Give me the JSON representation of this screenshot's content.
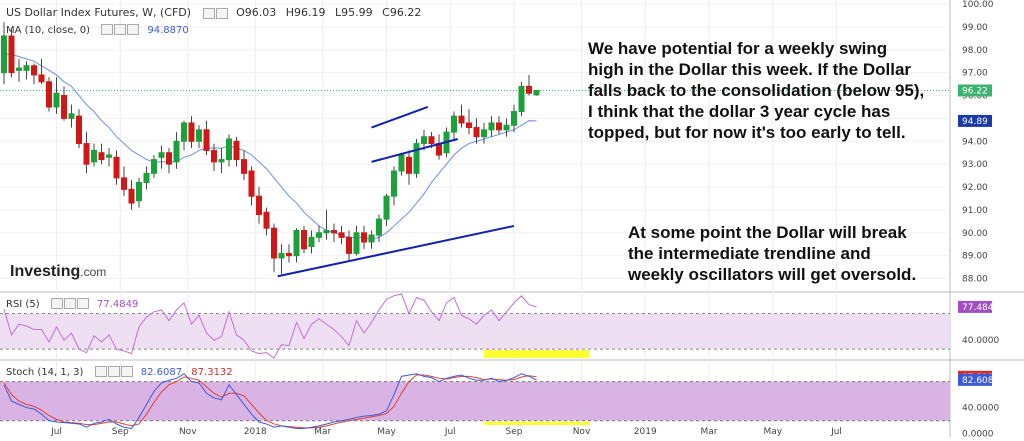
{
  "header": {
    "title": "US Dollar Index Futures, W, (CFD)",
    "ohlc": [
      {
        "k": "O",
        "v": "96.03"
      },
      {
        "k": "H",
        "v": "96.19"
      },
      {
        "k": "L",
        "v": "95.99"
      },
      {
        "k": "C",
        "v": "96.22"
      }
    ],
    "ma_label": "MA (10, close, 0)",
    "ma_value": "94.8870",
    "rsi_label": "RSI (5)",
    "rsi_value": "77.4849",
    "stoch_label": "Stoch (14, 1, 3)",
    "stoch_k_value": "82.6087",
    "stoch_d_value": "87.3132"
  },
  "logo": {
    "main": "Investing",
    "suffix": ".com"
  },
  "annotations": {
    "note1": "We have potential for a weekly swing\nhigh in the Dollar this week. If the Dollar\nfalls back to the consolidation (below 95),\nI think that the dollar 3 year cycle has\ntopped, but for now it's too early to tell.",
    "note2": "At some point the Dollar will break\nthe intermediate trendline and\nweekly oscillators will get oversold."
  },
  "colors": {
    "up": "#1aa13a",
    "down": "#d01818",
    "ma": "#6b8fe8",
    "rsi": "#c070d8",
    "stoch_k": "#3c5ad8",
    "stoch_d": "#e0403a",
    "band": "#d9b3e3",
    "highlight": "#ffff33",
    "trendline": "#1020b0",
    "current_price_line": "#3cb371"
  },
  "chart_data": [
    {
      "type": "candlestick",
      "title": "US Dollar Index Futures, W, (CFD)",
      "ylim": [
        87.5,
        100.0
      ],
      "yticks": [
        "100.00",
        "99.00",
        "98.00",
        "97.00",
        "96.00",
        "95.00",
        "94.00",
        "93.00",
        "92.00",
        "91.00",
        "90.00",
        "89.00",
        "88.00"
      ],
      "xticks": [
        "Jul",
        "Sep",
        "Nov",
        "2018",
        "Mar",
        "May",
        "Jul",
        "Sep",
        "Nov",
        "2019",
        "Mar",
        "May",
        "Jul"
      ],
      "last_price": "96.22",
      "ma_last": "94.89",
      "candles": [
        [
          97.0,
          99.2,
          96.5,
          98.6
        ],
        [
          98.6,
          98.9,
          96.8,
          97.0
        ],
        [
          97.1,
          97.6,
          96.6,
          97.2
        ],
        [
          97.1,
          97.5,
          96.7,
          97.3
        ],
        [
          97.3,
          97.4,
          96.5,
          96.9
        ],
        [
          96.9,
          97.6,
          96.5,
          96.6
        ],
        [
          96.6,
          96.8,
          95.3,
          95.5
        ],
        [
          95.5,
          96.8,
          95.2,
          96.1
        ],
        [
          96.0,
          96.4,
          94.9,
          95.0
        ],
        [
          95.0,
          95.6,
          94.6,
          95.2
        ],
        [
          95.1,
          95.4,
          93.7,
          93.9
        ],
        [
          93.9,
          94.4,
          92.6,
          93.0
        ],
        [
          93.1,
          93.9,
          92.9,
          93.6
        ],
        [
          93.5,
          93.9,
          93.0,
          93.2
        ],
        [
          93.3,
          93.7,
          92.9,
          93.4
        ],
        [
          93.3,
          93.6,
          92.1,
          92.4
        ],
        [
          92.4,
          92.9,
          91.6,
          91.9
        ],
        [
          91.9,
          92.3,
          91.0,
          91.3
        ],
        [
          91.4,
          92.4,
          91.1,
          92.2
        ],
        [
          92.2,
          92.9,
          91.9,
          92.6
        ],
        [
          92.6,
          93.4,
          92.4,
          93.2
        ],
        [
          93.3,
          93.8,
          92.8,
          93.5
        ],
        [
          93.5,
          93.7,
          92.6,
          93.0
        ],
        [
          93.1,
          94.4,
          92.8,
          94.0
        ],
        [
          94.0,
          94.9,
          93.6,
          94.8
        ],
        [
          94.8,
          95.1,
          93.7,
          94.0
        ],
        [
          94.0,
          94.7,
          93.7,
          94.5
        ],
        [
          94.5,
          94.9,
          93.4,
          93.6
        ],
        [
          93.6,
          93.9,
          92.7,
          93.1
        ],
        [
          93.1,
          93.7,
          92.6,
          93.2
        ],
        [
          93.2,
          94.3,
          92.9,
          94.1
        ],
        [
          94.0,
          94.2,
          92.9,
          93.2
        ],
        [
          93.2,
          93.6,
          92.3,
          92.6
        ],
        [
          92.7,
          92.9,
          91.2,
          91.6
        ],
        [
          91.6,
          92.0,
          90.4,
          90.8
        ],
        [
          90.9,
          91.1,
          89.9,
          90.2
        ],
        [
          90.2,
          90.4,
          88.3,
          88.9
        ],
        [
          88.9,
          89.5,
          88.2,
          89.1
        ],
        [
          89.1,
          89.5,
          88.7,
          89.0
        ],
        [
          89.0,
          90.2,
          88.7,
          90.1
        ],
        [
          90.1,
          90.3,
          89.1,
          89.3
        ],
        [
          89.4,
          90.1,
          89.1,
          89.8
        ],
        [
          89.8,
          90.3,
          89.6,
          90.0
        ],
        [
          90.0,
          91.0,
          89.7,
          90.1
        ],
        [
          90.1,
          90.4,
          89.6,
          90.0
        ],
        [
          90.0,
          90.3,
          89.5,
          89.8
        ],
        [
          89.8,
          90.1,
          88.8,
          89.1
        ],
        [
          89.1,
          90.3,
          89.0,
          90.0
        ],
        [
          90.0,
          90.3,
          89.3,
          89.6
        ],
        [
          89.6,
          90.1,
          89.3,
          89.9
        ],
        [
          89.9,
          90.8,
          89.6,
          90.6
        ],
        [
          90.6,
          91.7,
          90.3,
          91.6
        ],
        [
          91.6,
          92.9,
          91.2,
          92.7
        ],
        [
          92.7,
          93.5,
          92.5,
          93.4
        ],
        [
          93.3,
          93.6,
          92.1,
          92.6
        ],
        [
          92.6,
          94.1,
          92.4,
          93.9
        ],
        [
          93.9,
          94.5,
          93.6,
          94.2
        ],
        [
          94.2,
          94.4,
          93.7,
          93.9
        ],
        [
          93.9,
          94.3,
          93.2,
          93.4
        ],
        [
          93.5,
          94.6,
          93.3,
          94.4
        ],
        [
          94.4,
          95.3,
          94.0,
          95.1
        ],
        [
          95.1,
          95.6,
          94.6,
          94.8
        ],
        [
          94.8,
          95.4,
          94.3,
          94.6
        ],
        [
          94.6,
          95.0,
          93.9,
          94.2
        ],
        [
          94.2,
          94.8,
          93.9,
          94.5
        ],
        [
          94.5,
          95.1,
          94.2,
          94.8
        ],
        [
          94.8,
          95.1,
          94.3,
          94.5
        ],
        [
          94.5,
          95.0,
          94.2,
          94.7
        ],
        [
          94.7,
          95.6,
          94.4,
          95.3
        ],
        [
          95.3,
          96.6,
          95.1,
          96.4
        ],
        [
          96.4,
          96.9,
          96.0,
          96.1
        ],
        [
          96.03,
          96.19,
          95.99,
          96.22
        ]
      ],
      "ma": [
        97.8,
        97.8,
        97.7,
        97.6,
        97.5,
        97.3,
        97.1,
        96.9,
        96.6,
        96.4,
        96.0,
        95.6,
        95.3,
        94.9,
        94.6,
        94.2,
        93.9,
        93.6,
        93.4,
        93.2,
        93.1,
        93.1,
        93.1,
        93.1,
        93.3,
        93.4,
        93.6,
        93.7,
        93.7,
        93.7,
        93.8,
        93.7,
        93.6,
        93.4,
        93.1,
        92.8,
        92.4,
        92.0,
        91.6,
        91.3,
        90.9,
        90.6,
        90.3,
        90.1,
        90.0,
        89.9,
        89.8,
        89.8,
        89.8,
        89.7,
        89.8,
        90.0,
        90.3,
        90.6,
        90.9,
        91.3,
        91.7,
        92.2,
        92.6,
        93.0,
        93.4,
        93.7,
        93.9,
        94.0,
        94.1,
        94.2,
        94.3,
        94.4,
        94.5,
        94.7,
        94.9,
        94.89
      ],
      "trendlines": [
        {
          "x0": 49,
          "y0": 94.6,
          "x1": 56.5,
          "y1": 95.5
        },
        {
          "x0": 49,
          "y0": 93.1,
          "x1": 60.5,
          "y1": 94.1
        },
        {
          "x0": 36.5,
          "y0": 88.1,
          "x1": 68,
          "y1": 90.3
        }
      ],
      "highlight_range": [
        64,
        78
      ]
    },
    {
      "type": "line",
      "title": "RSI (5)",
      "ylim": [
        20,
        92
      ],
      "yticks": [
        "40.0000"
      ],
      "band": [
        30,
        70
      ],
      "last_value": "77.4849",
      "series": [
        {
          "name": "RSI",
          "values": [
            75,
            46,
            58,
            56,
            52,
            52,
            38,
            55,
            40,
            48,
            30,
            26,
            45,
            38,
            46,
            30,
            28,
            25,
            55,
            66,
            72,
            74,
            62,
            74,
            82,
            58,
            68,
            48,
            40,
            44,
            72,
            46,
            40,
            28,
            25,
            26,
            20,
            35,
            34,
            60,
            42,
            58,
            64,
            58,
            52,
            44,
            34,
            62,
            48,
            60,
            74,
            86,
            90,
            92,
            70,
            88,
            85,
            72,
            62,
            82,
            88,
            68,
            64,
            58,
            68,
            74,
            62,
            72,
            82,
            90,
            80,
            77.4849
          ]
        }
      ]
    },
    {
      "type": "line",
      "title": "Stoch (14, 1, 3)",
      "ylim": [
        -5,
        110
      ],
      "yticks": [
        "40.0000",
        "0.0000"
      ],
      "band": [
        20,
        80
      ],
      "last_values": [
        "87.3132",
        "82.6087"
      ],
      "series": [
        {
          "name": "%K",
          "values": [
            75,
            50,
            45,
            40,
            38,
            30,
            20,
            18,
            17,
            16,
            15,
            10,
            16,
            18,
            22,
            15,
            10,
            8,
            25,
            45,
            65,
            78,
            82,
            85,
            92,
            80,
            78,
            62,
            55,
            52,
            75,
            60,
            45,
            30,
            18,
            15,
            10,
            12,
            10,
            8,
            8,
            10,
            12,
            15,
            18,
            20,
            22,
            25,
            27,
            28,
            30,
            35,
            60,
            88,
            90,
            92,
            88,
            86,
            80,
            85,
            88,
            90,
            85,
            82,
            82,
            85,
            80,
            82,
            86,
            92,
            88,
            82.6087
          ]
        },
        {
          "name": "%D",
          "values": [
            78,
            60,
            50,
            45,
            42,
            36,
            28,
            22,
            18,
            17,
            16,
            14,
            14,
            16,
            18,
            18,
            15,
            12,
            15,
            30,
            48,
            64,
            75,
            80,
            87,
            85,
            82,
            72,
            62,
            56,
            62,
            62,
            58,
            45,
            32,
            20,
            15,
            12,
            11,
            10,
            9,
            9,
            10,
            12,
            15,
            18,
            20,
            22,
            24,
            26,
            28,
            31,
            42,
            62,
            80,
            90,
            90,
            88,
            85,
            84,
            86,
            88,
            88,
            86,
            83,
            84,
            83,
            82,
            83,
            87,
            89,
            87.3132
          ]
        }
      ]
    }
  ]
}
